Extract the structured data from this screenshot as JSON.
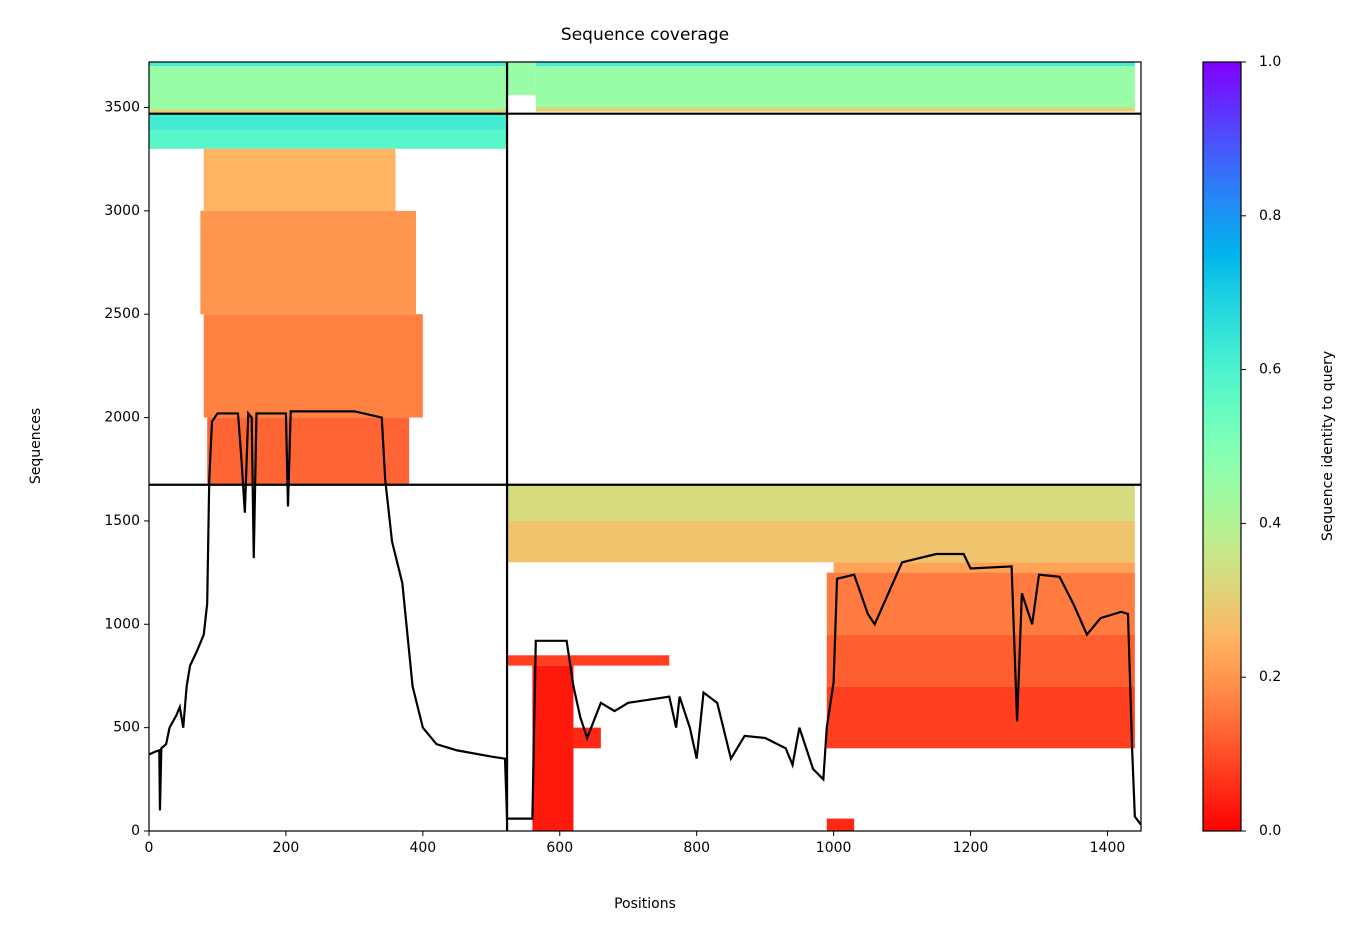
{
  "chart_data": {
    "type": "msa-coverage",
    "title": "Sequence coverage",
    "x_label": "Positions",
    "y_label": "Sequences",
    "colorbar_label": "Sequence identity to query",
    "xlim": [
      0,
      1449
    ],
    "ylim": [
      0,
      3720
    ],
    "xticks": [
      0,
      200,
      400,
      600,
      800,
      1000,
      1200,
      1400
    ],
    "yticks": [
      0,
      500,
      1000,
      1500,
      2000,
      2500,
      3000,
      3500
    ],
    "colorbar_lim": [
      0,
      1
    ],
    "colorbar_ticks": [
      {
        "value": 0,
        "label": "0.0"
      },
      {
        "value": 0.2,
        "label": "0.2"
      },
      {
        "value": 0.4,
        "label": "0.4"
      },
      {
        "value": 0.6,
        "label": "0.6"
      },
      {
        "value": 0.8,
        "label": "0.8"
      },
      {
        "value": 1,
        "label": "1.0"
      }
    ],
    "colormap": "rainbow_r",
    "line_color": "#000000",
    "boundaries": {
      "x": [
        523
      ],
      "y": [
        1675,
        3470
      ]
    },
    "blocks": [
      {
        "x": [
          0,
          523
        ],
        "y": [
          3700,
          3720
        ],
        "identity": 0.62
      },
      {
        "x": [
          0,
          523
        ],
        "y": [
          3490,
          3700
        ],
        "identity": 0.45
      },
      {
        "x": [
          0,
          523
        ],
        "y": [
          3470,
          3490
        ],
        "identity": 0.3
      },
      {
        "x": [
          565,
          1440
        ],
        "y": [
          3700,
          3720
        ],
        "identity": 0.62
      },
      {
        "x": [
          565,
          1440
        ],
        "y": [
          3500,
          3700
        ],
        "identity": 0.45
      },
      {
        "x": [
          523,
          565
        ],
        "y": [
          3560,
          3720
        ],
        "identity": 0.45
      },
      {
        "x": [
          565,
          1440
        ],
        "y": [
          3480,
          3500
        ],
        "identity": 0.3
      },
      {
        "x": [
          0,
          523
        ],
        "y": [
          3390,
          3470
        ],
        "identity": 0.62
      },
      {
        "x": [
          0,
          523
        ],
        "y": [
          3300,
          3390
        ],
        "identity": 0.58
      },
      {
        "x": [
          80,
          360
        ],
        "y": [
          3000,
          3300
        ],
        "identity": 0.25
      },
      {
        "x": [
          75,
          390
        ],
        "y": [
          2500,
          3000
        ],
        "identity": 0.2
      },
      {
        "x": [
          80,
          400
        ],
        "y": [
          2000,
          2500
        ],
        "identity": 0.17
      },
      {
        "x": [
          85,
          380
        ],
        "y": [
          1675,
          2000
        ],
        "identity": 0.13
      },
      {
        "x": [
          523,
          1440
        ],
        "y": [
          1500,
          1675
        ],
        "identity": 0.33
      },
      {
        "x": [
          523,
          1440
        ],
        "y": [
          1300,
          1500
        ],
        "identity": 0.28
      },
      {
        "x": [
          1000,
          1440
        ],
        "y": [
          1250,
          1300
        ],
        "identity": 0.22
      },
      {
        "x": [
          990,
          1440
        ],
        "y": [
          950,
          1250
        ],
        "identity": 0.16
      },
      {
        "x": [
          990,
          1440
        ],
        "y": [
          700,
          950
        ],
        "identity": 0.12
      },
      {
        "x": [
          990,
          1440
        ],
        "y": [
          400,
          700
        ],
        "identity": 0.08
      },
      {
        "x": [
          523,
          760
        ],
        "y": [
          800,
          850
        ],
        "identity": 0.08
      },
      {
        "x": [
          560,
          620
        ],
        "y": [
          0,
          800
        ],
        "identity": 0.03
      },
      {
        "x": [
          620,
          660
        ],
        "y": [
          400,
          500
        ],
        "identity": 0.05
      },
      {
        "x": [
          990,
          1030
        ],
        "y": [
          0,
          60
        ],
        "identity": 0.05
      }
    ],
    "coverage": {
      "x": [
        0,
        10,
        15,
        16,
        18,
        25,
        30,
        40,
        45,
        50,
        55,
        60,
        70,
        80,
        85,
        88,
        92,
        100,
        130,
        135,
        140,
        145,
        150,
        153,
        157,
        200,
        203,
        207,
        300,
        340,
        345,
        355,
        370,
        385,
        400,
        420,
        450,
        500,
        520,
        523,
        560,
        565,
        610,
        620,
        630,
        640,
        660,
        680,
        700,
        760,
        770,
        775,
        790,
        800,
        810,
        830,
        850,
        870,
        900,
        930,
        940,
        950,
        970,
        985,
        990,
        1000,
        1005,
        1030,
        1050,
        1060,
        1080,
        1100,
        1150,
        1190,
        1200,
        1260,
        1268,
        1275,
        1290,
        1300,
        1330,
        1350,
        1370,
        1390,
        1420,
        1430,
        1436,
        1440,
        1449
      ],
      "values": [
        370,
        385,
        390,
        100,
        400,
        420,
        500,
        560,
        600,
        500,
        700,
        800,
        870,
        950,
        1100,
        1700,
        1980,
        2020,
        2020,
        1800,
        1540,
        2020,
        2000,
        1320,
        2020,
        2020,
        1570,
        2030,
        2030,
        2000,
        1700,
        1400,
        1200,
        700,
        500,
        420,
        390,
        360,
        350,
        60,
        60,
        920,
        920,
        700,
        550,
        450,
        620,
        580,
        620,
        650,
        500,
        650,
        500,
        350,
        670,
        620,
        350,
        460,
        450,
        400,
        320,
        500,
        300,
        250,
        500,
        720,
        1220,
        1240,
        1050,
        1000,
        1150,
        1300,
        1340,
        1340,
        1270,
        1280,
        530,
        1150,
        1000,
        1240,
        1230,
        1100,
        950,
        1030,
        1060,
        1050,
        400,
        70,
        30
      ]
    }
  }
}
